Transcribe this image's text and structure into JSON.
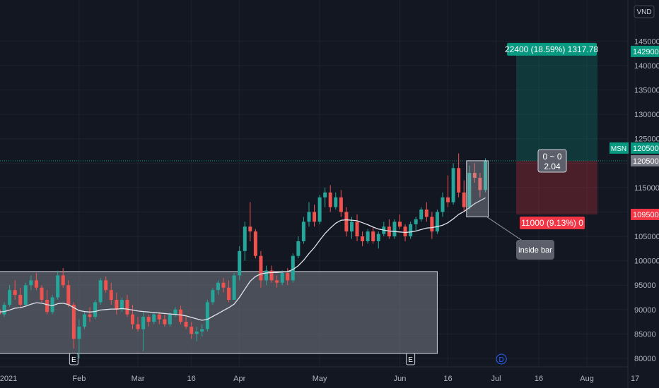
{
  "chart_data": {
    "type": "candlestick",
    "symbol": "MSN",
    "currency": "VND",
    "ylim": [
      78000,
      150000
    ],
    "yticks": [
      80000,
      85000,
      90000,
      95000,
      100000,
      105000,
      110000,
      115000,
      120000,
      125000,
      130000,
      135000,
      140000,
      145000
    ],
    "x_labels": [
      {
        "text": "2021",
        "i": 0
      },
      {
        "text": "Feb",
        "i": 15
      },
      {
        "text": "Mar",
        "i": 26
      },
      {
        "text": "16",
        "i": 36
      },
      {
        "text": "Apr",
        "i": 45
      },
      {
        "text": "May",
        "i": 60
      },
      {
        "text": "Jun",
        "i": 75
      },
      {
        "text": "16",
        "i": 84
      },
      {
        "text": "Jul",
        "i": 93
      },
      {
        "text": "16",
        "i": 101
      },
      {
        "text": "Aug",
        "i": 110
      },
      {
        "text": "17",
        "i": 119
      }
    ],
    "candles": [
      [
        90000,
        92000,
        87500,
        89000
      ],
      [
        89000,
        91500,
        88500,
        91000
      ],
      [
        91000,
        95000,
        90500,
        94000
      ],
      [
        94000,
        96000,
        92000,
        93000
      ],
      [
        93000,
        94500,
        90500,
        91000
      ],
      [
        91000,
        95500,
        90800,
        95000
      ],
      [
        95000,
        97000,
        94000,
        96000
      ],
      [
        96000,
        97500,
        94000,
        94500
      ],
      [
        94500,
        95000,
        91500,
        92000
      ],
      [
        92000,
        94000,
        89000,
        89500
      ],
      [
        89500,
        93000,
        89000,
        92500
      ],
      [
        92500,
        98000,
        92000,
        97000
      ],
      [
        97000,
        98500,
        94500,
        95000
      ],
      [
        95000,
        96000,
        90500,
        91000
      ],
      [
        91000,
        91500,
        82000,
        84000
      ],
      [
        84000,
        88000,
        80000,
        86500
      ],
      [
        86500,
        89500,
        86000,
        89000
      ],
      [
        89000,
        90500,
        87500,
        88500
      ],
      [
        88500,
        92000,
        88000,
        91500
      ],
      [
        91500,
        96500,
        91000,
        96000
      ],
      [
        96000,
        96800,
        93500,
        94000
      ],
      [
        94000,
        95500,
        91000,
        92000
      ],
      [
        92000,
        93500,
        89000,
        90000
      ],
      [
        90000,
        92500,
        89500,
        92000
      ],
      [
        92000,
        93000,
        88500,
        89000
      ],
      [
        89000,
        91000,
        86000,
        87000
      ],
      [
        87000,
        88500,
        85500,
        86000
      ],
      [
        86000,
        89500,
        81500,
        88500
      ],
      [
        88500,
        89000,
        86500,
        87500
      ],
      [
        87500,
        89500,
        87000,
        89000
      ],
      [
        89000,
        89500,
        87000,
        88000
      ],
      [
        88000,
        89000,
        86500,
        87000
      ],
      [
        87000,
        89500,
        86500,
        89000
      ],
      [
        89000,
        90500,
        88500,
        90000
      ],
      [
        90000,
        90800,
        87000,
        87500
      ],
      [
        87500,
        88500,
        86000,
        86500
      ],
      [
        86500,
        87500,
        84000,
        85000
      ],
      [
        85000,
        86500,
        83500,
        85500
      ],
      [
        85500,
        87000,
        84500,
        86000
      ],
      [
        86000,
        92000,
        85500,
        91500
      ],
      [
        91500,
        94500,
        91000,
        94000
      ],
      [
        94000,
        96000,
        93000,
        95500
      ],
      [
        95500,
        96500,
        93500,
        94500
      ],
      [
        94500,
        96000,
        91500,
        92000
      ],
      [
        92000,
        97500,
        92000,
        97000
      ],
      [
        97000,
        103000,
        96000,
        102000
      ],
      [
        102000,
        108000,
        100000,
        107000
      ],
      [
        107000,
        112000,
        104000,
        106000
      ],
      [
        106000,
        106500,
        100500,
        101000
      ],
      [
        101000,
        102000,
        94500,
        96000
      ],
      [
        96000,
        99000,
        95000,
        98000
      ],
      [
        98000,
        99000,
        95500,
        96000
      ],
      [
        96000,
        97000,
        94500,
        95500
      ],
      [
        95500,
        98000,
        95000,
        97500
      ],
      [
        97500,
        98500,
        95000,
        96000
      ],
      [
        96000,
        101500,
        95500,
        101000
      ],
      [
        101000,
        105000,
        100500,
        104000
      ],
      [
        104000,
        109000,
        103500,
        108000
      ],
      [
        108000,
        112000,
        107000,
        110000
      ],
      [
        110000,
        111500,
        107000,
        108000
      ],
      [
        108000,
        113500,
        107500,
        113000
      ],
      [
        113000,
        115000,
        111000,
        114000
      ],
      [
        114000,
        115500,
        110000,
        111000
      ],
      [
        111000,
        114000,
        110500,
        113000
      ],
      [
        113000,
        114500,
        109000,
        110000
      ],
      [
        110000,
        111000,
        105000,
        106000
      ],
      [
        106000,
        109000,
        104500,
        108000
      ],
      [
        108000,
        109500,
        104000,
        105000
      ],
      [
        105000,
        106000,
        103000,
        104000
      ],
      [
        104000,
        106500,
        103500,
        106000
      ],
      [
        106000,
        107000,
        103500,
        104000
      ],
      [
        104000,
        106000,
        102500,
        105500
      ],
      [
        105500,
        108000,
        105000,
        107000
      ],
      [
        107000,
        108500,
        104500,
        105000
      ],
      [
        105000,
        108500,
        104500,
        108000
      ],
      [
        108000,
        109500,
        106500,
        107000
      ],
      [
        107000,
        107500,
        104000,
        105000
      ],
      [
        105000,
        108000,
        104500,
        107500
      ],
      [
        107500,
        109000,
        106000,
        108500
      ],
      [
        108500,
        111000,
        108000,
        110500
      ],
      [
        110500,
        112000,
        108000,
        109000
      ],
      [
        109000,
        110000,
        104500,
        106000
      ],
      [
        106000,
        110500,
        105500,
        110000
      ],
      [
        110000,
        114000,
        109000,
        113000
      ],
      [
        113000,
        117500,
        111000,
        112000
      ],
      [
        112000,
        120000,
        111500,
        119000
      ],
      [
        119000,
        122000,
        113000,
        114000
      ],
      [
        114000,
        116500,
        110000,
        111000
      ],
      [
        111000,
        119500,
        110500,
        118000
      ],
      [
        118000,
        120000,
        116000,
        117000
      ],
      [
        117000,
        118000,
        113000,
        114500
      ],
      [
        114500,
        121000,
        114000,
        120500
      ]
    ],
    "ma": [
      89500,
      89600,
      89900,
      90300,
      90400,
      90700,
      91100,
      91400,
      91300,
      91000,
      90800,
      91200,
      91300,
      91000,
      90400,
      89800,
      89600,
      89500,
      89600,
      89900,
      90000,
      90100,
      90100,
      90200,
      90100,
      89900,
      89700,
      89600,
      89500,
      89400,
      89300,
      89200,
      89100,
      89000,
      88900,
      88700,
      88400,
      88100,
      87800,
      88000,
      88600,
      89200,
      89800,
      90400,
      91100,
      92500,
      94200,
      95800,
      96800,
      97300,
      97500,
      97600,
      97600,
      97700,
      97800,
      98200,
      99000,
      100100,
      101500,
      102700,
      104200,
      105600,
      106700,
      107700,
      108300,
      108400,
      108300,
      108200,
      107800,
      107400,
      106900,
      106500,
      106300,
      106100,
      106000,
      105900,
      105800,
      105900,
      106100,
      106400,
      106700,
      106800,
      107000,
      107300,
      107800,
      108600,
      109500,
      110100,
      110900,
      111700,
      112300,
      112900
    ],
    "current_price": 120500,
    "position": {
      "entry": 120500,
      "target": 142900,
      "stop": 109500,
      "profit_label": "22400 (18.59%) 1317.78",
      "loss_label": "11000 (9.13%) 0",
      "center_line1": "0 ~ 0",
      "center_line2": "2.04",
      "target_tag": "142900",
      "entry_tag": "120500",
      "stop_tag": "109500"
    },
    "price_tag": {
      "symbol": "MSN",
      "value": "120500"
    },
    "annotation": "inside bar",
    "event_markers": [
      {
        "label": "E",
        "i": 14
      },
      {
        "label": "E",
        "i": 77
      },
      {
        "label": "D",
        "i": 94
      }
    ]
  }
}
